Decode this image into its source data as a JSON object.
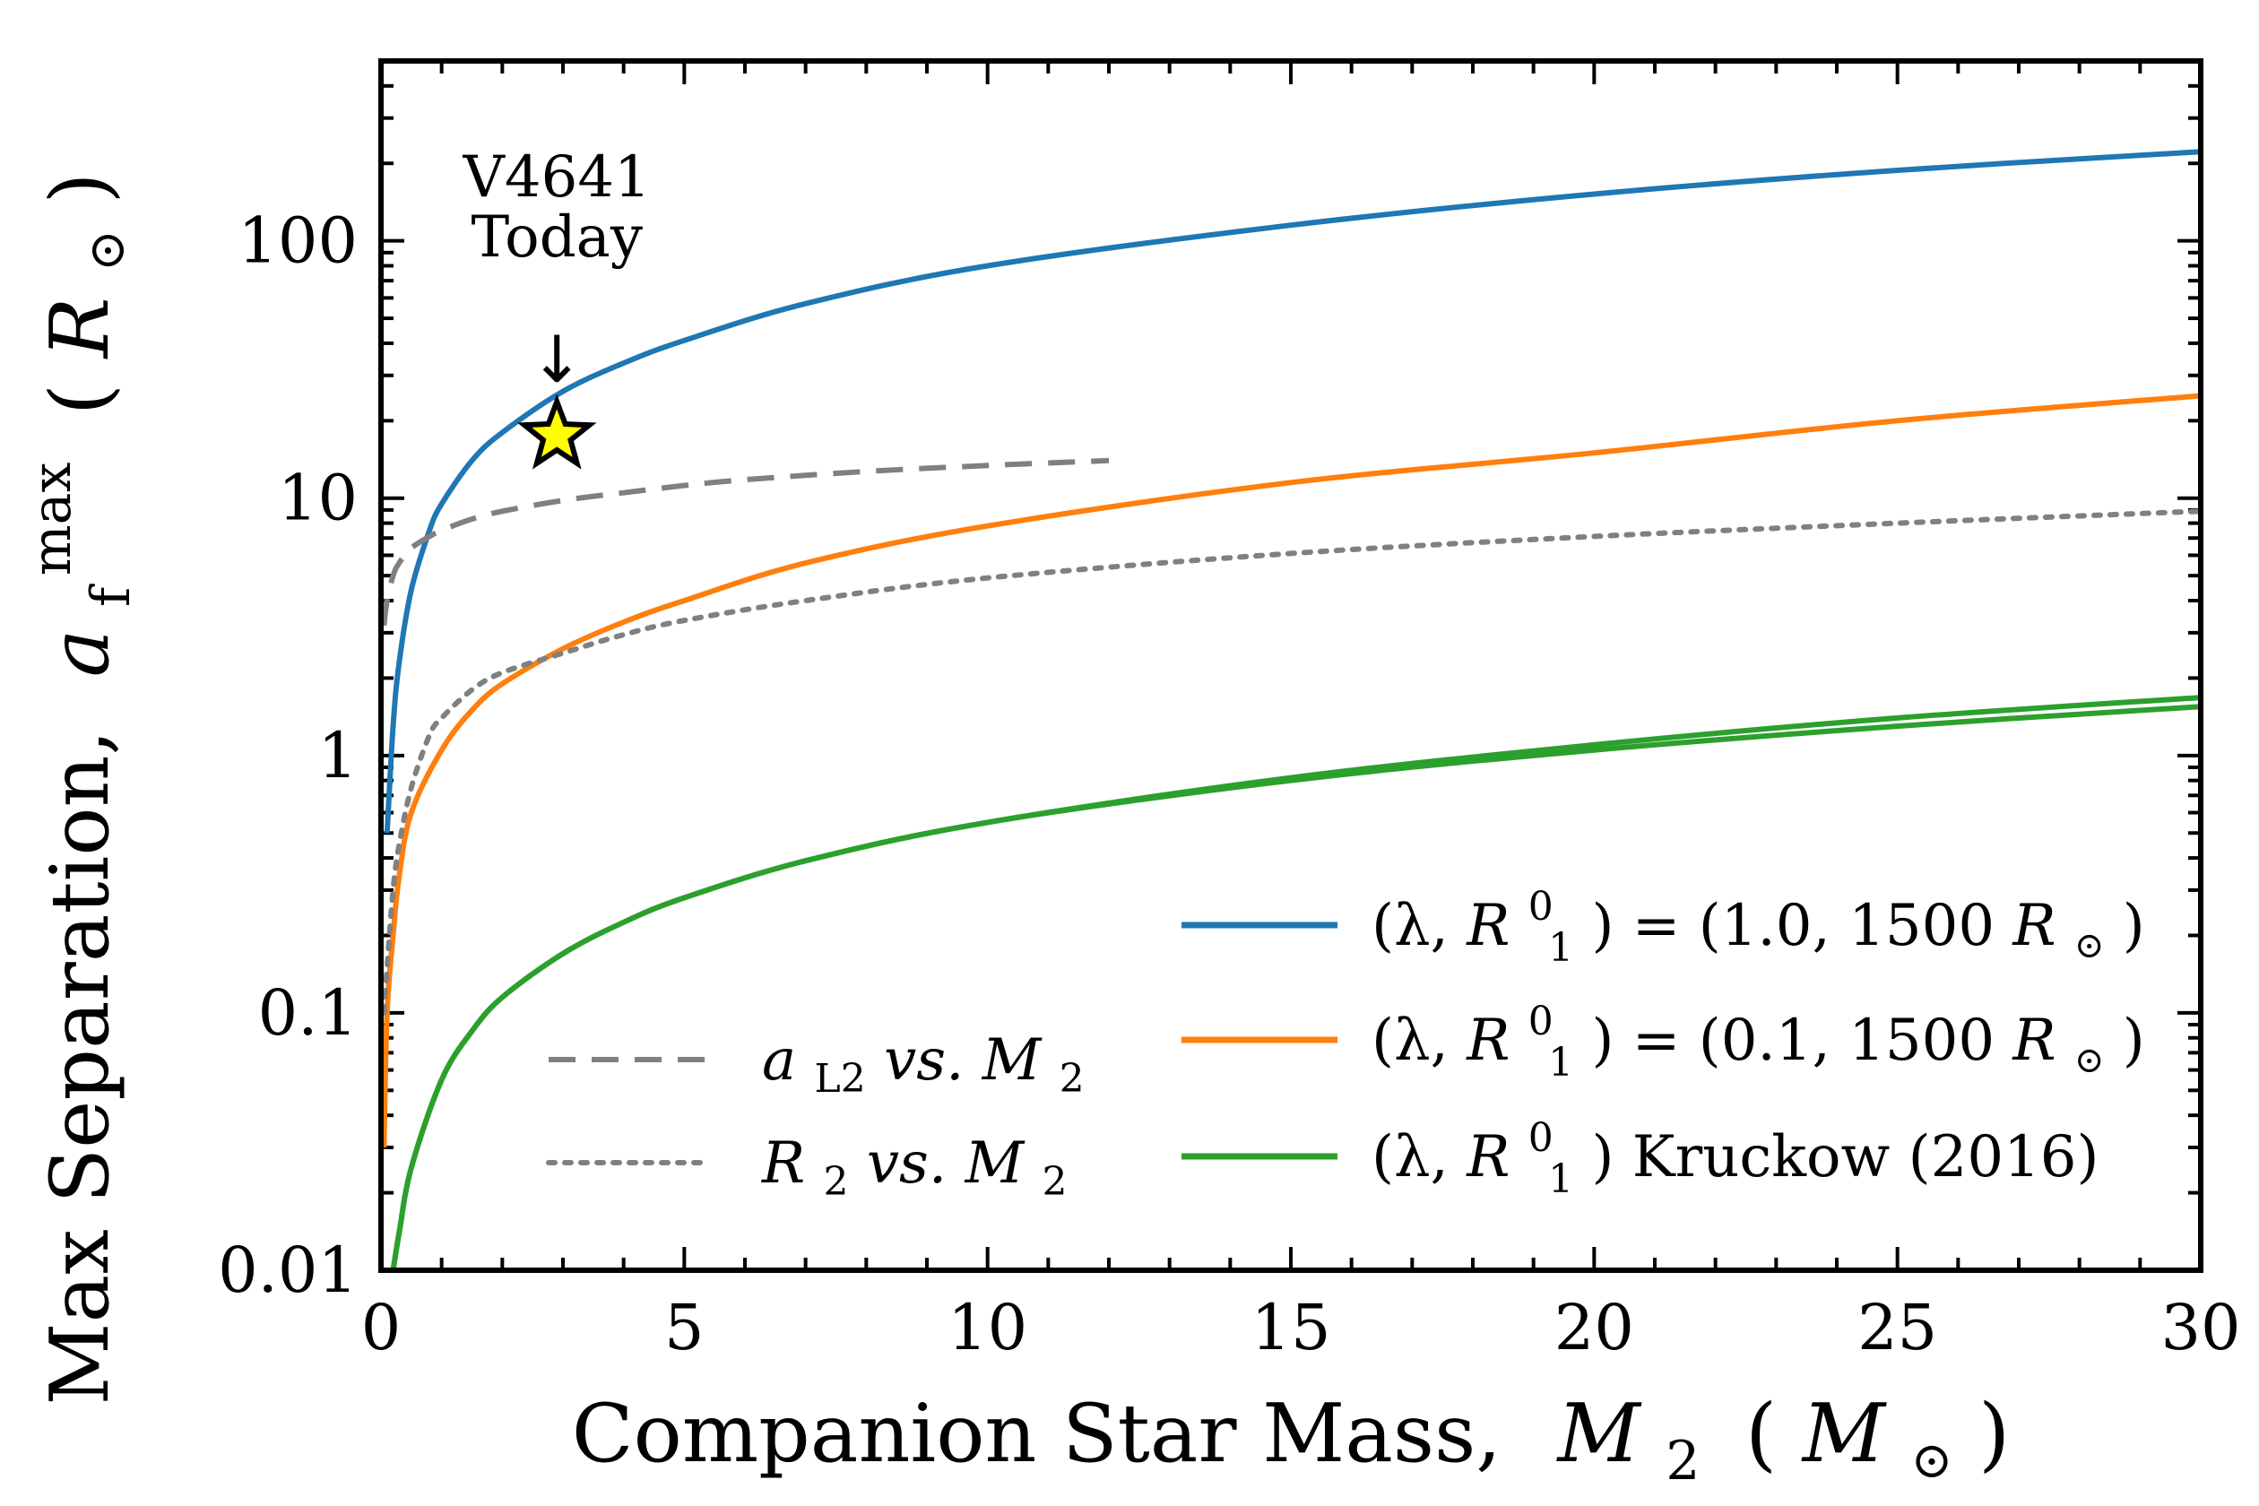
{
  "chart_data": {
    "type": "line",
    "yscale": "log",
    "xlabel": {
      "prefix": "Companion Star Mass,",
      "var": "M",
      "sub": "2",
      "unit_open": "(",
      "unit": "M",
      "unit_sub": "⊙",
      "unit_close": ")"
    },
    "ylabel": {
      "prefix": "Max Separation,",
      "var": "a",
      "sub": "f",
      "sup": "max",
      "unit_open": "(",
      "unit": "R",
      "unit_sub": "⊙",
      "unit_close": ")"
    },
    "xlim": [
      0,
      30
    ],
    "ylim": [
      0.01,
      500
    ],
    "xticks": [
      0,
      5,
      10,
      15,
      20,
      25,
      30
    ],
    "xtick_labels": [
      "0",
      "5",
      "10",
      "15",
      "20",
      "25",
      "30"
    ],
    "yticks": [
      0.01,
      0.1,
      1,
      10,
      100
    ],
    "ytick_labels": [
      "0.01",
      "0.1",
      "1",
      "10",
      "100"
    ],
    "series": [
      {
        "name": "lambda1.0",
        "style": "solid",
        "color": "#1f77b4",
        "x": [
          0.1,
          0.2,
          0.3,
          0.5,
          0.8,
          1,
          1.5,
          2,
          3,
          4,
          5,
          7,
          10,
          15,
          20,
          25,
          30
        ],
        "y": [
          0.5,
          1.3,
          2.3,
          4.4,
          7.5,
          9.5,
          14,
          18,
          26,
          33.5,
          41,
          57,
          80,
          115,
          152,
          188,
          222
        ]
      },
      {
        "name": "lambda0.1",
        "style": "solid",
        "color": "#ff7f0e",
        "x": [
          0.05,
          0.1,
          0.2,
          0.3,
          0.5,
          1,
          1.5,
          2,
          3,
          4,
          5,
          7,
          10,
          15,
          20,
          25,
          30
        ],
        "y": [
          0.03,
          0.1,
          0.2,
          0.34,
          0.6,
          1.05,
          1.5,
          1.9,
          2.6,
          3.3,
          4.0,
          5.6,
          7.8,
          11.5,
          15,
          20,
          25
        ]
      },
      {
        "name": "kruckow-a",
        "style": "solid",
        "color": "#2ca02c",
        "x": [
          0.2,
          0.3,
          0.5,
          1,
          1.5,
          2,
          3,
          4,
          5,
          7,
          10,
          15,
          20,
          25,
          30
        ],
        "y": [
          0.01,
          0.014,
          0.025,
          0.055,
          0.085,
          0.115,
          0.17,
          0.225,
          0.28,
          0.39,
          0.55,
          0.8,
          1.05,
          1.3,
          1.55
        ]
      },
      {
        "name": "kruckow-b",
        "style": "solid",
        "color": "#2ca02c",
        "x": [
          0.2,
          0.3,
          0.5,
          1,
          1.5,
          2,
          3,
          4,
          5,
          7,
          10,
          15,
          20,
          25,
          30
        ],
        "y": [
          0.01,
          0.014,
          0.025,
          0.055,
          0.085,
          0.115,
          0.17,
          0.225,
          0.28,
          0.39,
          0.55,
          0.82,
          1.1,
          1.4,
          1.68
        ]
      },
      {
        "name": "aL2",
        "style": "dashed",
        "color": "#808080",
        "x": [
          0.05,
          0.1,
          0.2,
          0.3,
          0.5,
          0.8,
          1,
          1.5,
          2,
          3,
          4,
          5,
          6,
          8,
          10,
          12
        ],
        "y": [
          3.2,
          4.0,
          5.0,
          5.6,
          6.4,
          7.1,
          7.5,
          8.3,
          8.9,
          9.8,
          10.5,
          11.2,
          11.8,
          12.7,
          13.4,
          14.0
        ]
      },
      {
        "name": "R2",
        "style": "dotted",
        "color": "#808080",
        "x": [
          0.05,
          0.1,
          0.2,
          0.3,
          0.5,
          0.8,
          1,
          1.5,
          2,
          3,
          4,
          5,
          7,
          10,
          15,
          20,
          25,
          30
        ],
        "y": [
          0.1,
          0.15,
          0.3,
          0.45,
          0.75,
          1.2,
          1.4,
          1.8,
          2.1,
          2.5,
          2.95,
          3.35,
          4.0,
          4.9,
          6.1,
          7.1,
          8.0,
          8.9
        ]
      }
    ],
    "legend_right": [
      {
        "series": "lambda1.0",
        "color": "#1f77b4",
        "style": "solid",
        "pre": "(λ, ",
        "var": "R",
        "sup": "0",
        "sub": "1",
        "post": ") = (1.0, 1500 ",
        "unit": "R",
        "unit_sub": "⊙",
        "close": ")"
      },
      {
        "series": "lambda0.1",
        "color": "#ff7f0e",
        "style": "solid",
        "pre": "(λ, ",
        "var": "R",
        "sup": "0",
        "sub": "1",
        "post": ") = (0.1, 1500 ",
        "unit": "R",
        "unit_sub": "⊙",
        "close": ")"
      },
      {
        "series": "kruckow",
        "color": "#2ca02c",
        "style": "solid",
        "pre": "(λ, ",
        "var": "R",
        "sup": "0",
        "sub": "1",
        "post": ") Kruckow (2016)",
        "unit": "",
        "unit_sub": "",
        "close": ""
      }
    ],
    "legend_left": [
      {
        "series": "aL2",
        "color": "#808080",
        "style": "dashed",
        "var": "a",
        "sub": "L2",
        "vs": " vs. ",
        "var2": "M",
        "sub2": "2"
      },
      {
        "series": "R2",
        "color": "#808080",
        "style": "dotted",
        "var": "R",
        "sub": "2",
        "vs": " vs. ",
        "var2": "M",
        "sub2": "2"
      }
    ],
    "marker": {
      "type": "star",
      "x": 2.9,
      "y": 17.5,
      "fill": "#ffff00",
      "edge": "#000000",
      "label_line1": "V4641",
      "label_line2": "Today",
      "arrow": "↓"
    }
  }
}
